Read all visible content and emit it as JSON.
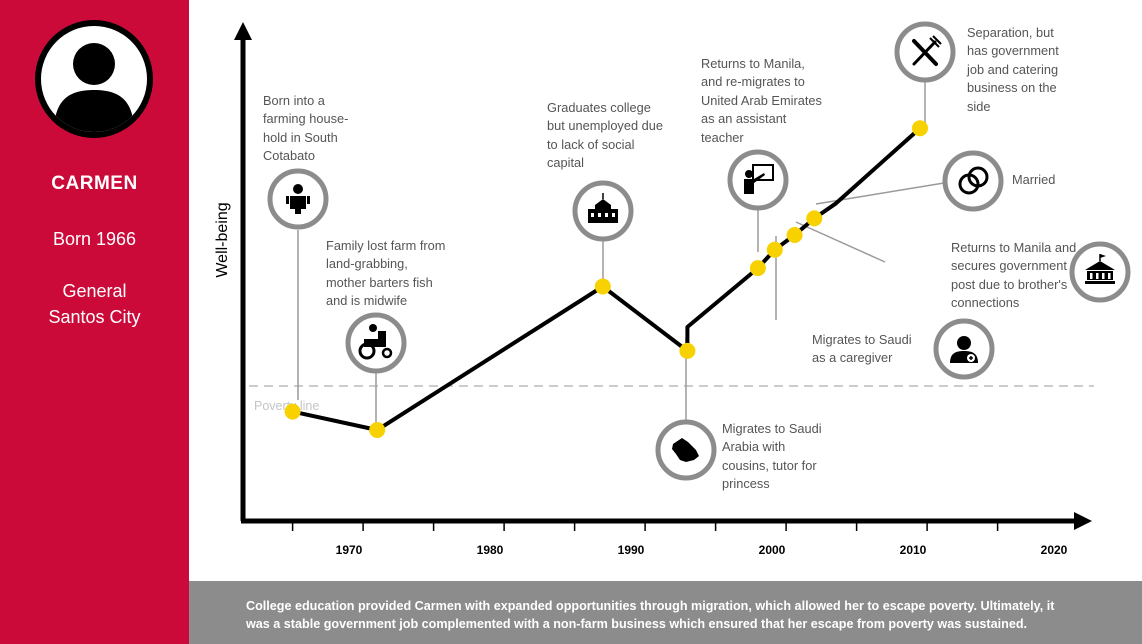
{
  "profile": {
    "name": "CARMEN",
    "born": "Born 1966",
    "city_line1": "General",
    "city_line2": "Santos City",
    "colors": {
      "sidebar": "#cc0a3a",
      "marker": "#f7d100",
      "line": "#000000",
      "icon_ring": "#8c8c8c"
    }
  },
  "caption": {
    "line1": "College education provided Carmen with expanded opportunities through migration, which allowed her to escape poverty. Ultimately, it",
    "line2": "was a stable government job complemented with a non-farm business which ensured that her escape from poverty was sustained."
  },
  "chart_data": {
    "type": "line",
    "ylabel": "Well-being",
    "xlabel": "",
    "x_ticks": [
      "1970",
      "1980",
      "1990",
      "2000",
      "2010",
      "2020"
    ],
    "xlim": [
      1963,
      2022
    ],
    "poverty_line_label": "Poverty line",
    "series": [
      {
        "values": [
          {
            "x": 1966,
            "y": 1.2
          },
          {
            "x": 1972,
            "y": 0.2
          },
          {
            "x": 1988,
            "y": 8.0
          },
          {
            "x": 1994,
            "y": 4.5
          },
          {
            "x": 1994,
            "y": 5.8
          },
          {
            "x": 1999,
            "y": 9.0
          },
          {
            "x": 2000.2,
            "y": 10.0
          },
          {
            "x": 2001.6,
            "y": 10.8
          },
          {
            "x": 2003,
            "y": 11.7
          },
          {
            "x": 2004.5,
            "y": 12.5
          },
          {
            "x": 2010.5,
            "y": 16.6
          }
        ]
      }
    ],
    "events": [
      {
        "x": 1966,
        "y": 1.2,
        "label": [
          "Born into a",
          "farming house-",
          "hold in South",
          "Cotabato"
        ],
        "icon": "baby-icon"
      },
      {
        "x": 1972,
        "y": 0.2,
        "label": [
          "Family lost farm from",
          "land-grabbing,",
          "mother barters fish",
          "and is midwife"
        ],
        "icon": "tractor-icon"
      },
      {
        "x": 1988,
        "y": 8.0,
        "label": [
          "Graduates college",
          "but unemployed due",
          "to lack of social",
          "capital"
        ],
        "icon": "school-building-icon"
      },
      {
        "x": 1994,
        "y": 4.5,
        "label": [
          "Migrates to Saudi",
          "Arabia with",
          "cousins, tutor for",
          "princess"
        ],
        "icon": "saudi-arabia-map-icon"
      },
      {
        "x": 1999,
        "y": 9.0,
        "label": [
          "Returns to Manila,",
          "and re-migrates to",
          "United Arab Emirates",
          "as an assistant",
          "teacher"
        ],
        "icon": "teacher-icon"
      },
      {
        "x": 2000.2,
        "y": 10.0,
        "label": [
          "Migrates to Saudi",
          "as a caregiver"
        ],
        "icon": "caregiver-icon"
      },
      {
        "x": 2001.6,
        "y": 10.8,
        "label": [
          "Returns to Manila and",
          "secures government",
          "post due to brother's",
          "connections"
        ],
        "icon": "government-building-icon"
      },
      {
        "x": 2003,
        "y": 11.7,
        "label": [
          "Married"
        ],
        "icon": "wedding-rings-icon"
      },
      {
        "x": 2010.5,
        "y": 16.6,
        "label": [
          "Separation, but",
          "has government",
          "job and catering",
          "business on the",
          "side"
        ],
        "icon": "fork-knife-icon"
      }
    ]
  }
}
